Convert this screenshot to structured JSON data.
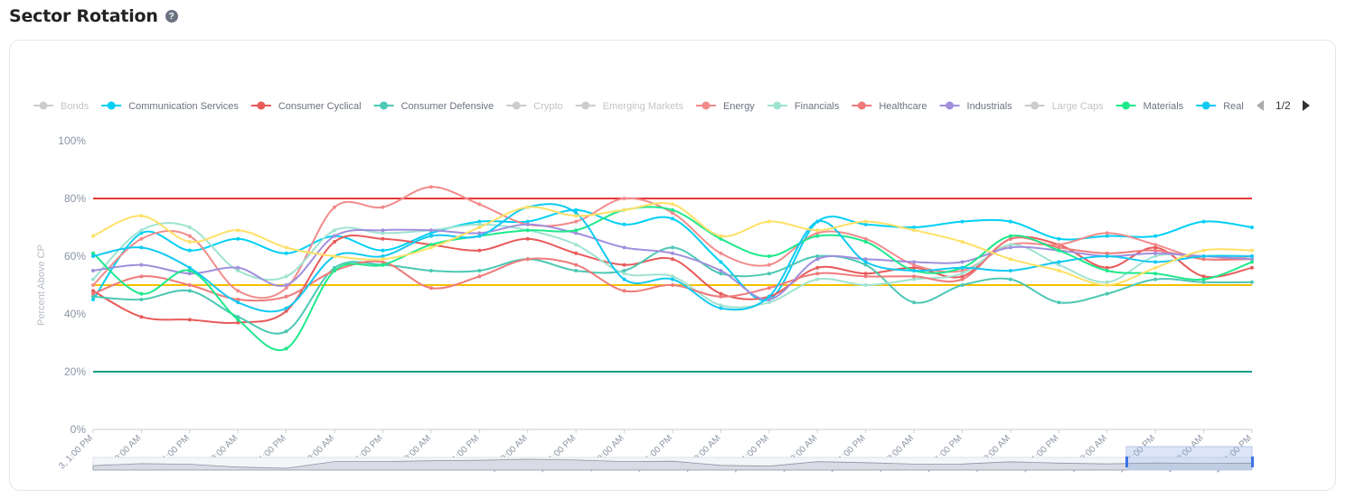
{
  "header": {
    "title": "Sector Rotation",
    "help_icon": "question-circle-icon"
  },
  "legend": {
    "page": "1/2",
    "items": [
      {
        "name": "Bonds",
        "color": "#cccccc",
        "active": false
      },
      {
        "name": "Communication Services",
        "color": "#00d0f5",
        "active": true
      },
      {
        "name": "Consumer Cyclical",
        "color": "#e85a5a",
        "active": true
      },
      {
        "name": "Consumer Defensive",
        "color": "#4cc8b4",
        "active": true
      },
      {
        "name": "Crypto",
        "color": "#cccccc",
        "active": false
      },
      {
        "name": "Emerging Markets",
        "color": "#cccccc",
        "active": false
      },
      {
        "name": "Energy",
        "color": "#f28b8b",
        "active": true
      },
      {
        "name": "Financials",
        "color": "#9fe3d1",
        "active": true
      },
      {
        "name": "Healthcare",
        "color": "#ef7a7a",
        "active": true
      },
      {
        "name": "Industrials",
        "color": "#a18fdc",
        "active": true
      },
      {
        "name": "Large Caps",
        "color": "#cccccc",
        "active": false
      },
      {
        "name": "Materials",
        "color": "#1de98b",
        "active": true
      },
      {
        "name": "Real",
        "color": "#12c9f2",
        "active": true
      }
    ]
  },
  "chart_data": {
    "type": "line",
    "ylabel": "Percent Above CP",
    "ylim": [
      0,
      100
    ],
    "yticks": [
      "0%",
      "20%",
      "40%",
      "60%",
      "80%",
      "100%"
    ],
    "x": [
      "3, 1:00 PM",
      "4, 9:00 AM",
      "4, 1:00 PM",
      "5, 9:00 AM",
      "5, 1:00 PM",
      "6, 9:00 AM",
      "6, 1:00 PM",
      "9, 9:00 AM",
      "9, 1:00 PM",
      "10, 9:00 AM",
      "10, 1:00 PM",
      "11, 9:00 AM",
      "11, 1:00 PM",
      "12, 9:00 AM",
      "12, 1:00 PM",
      "13, 9:00 AM",
      "13, 1:00 PM",
      "17, 9:00 AM",
      "17, 1:00 PM",
      "18, 9:00 AM",
      "18, 1:00 PM",
      "19, 9:00 AM",
      "19, 1:00 PM",
      "20, 9:00 AM",
      "20, 1:00 PM"
    ],
    "reference_lines": [
      {
        "value": 80,
        "color": "#e53935"
      },
      {
        "value": 50,
        "color": "#f5c000"
      },
      {
        "value": 20,
        "color": "#1a9e86"
      }
    ],
    "series": [
      {
        "name": "Communication Services",
        "color": "#00d0f5",
        "values": [
          45,
          68,
          62,
          66,
          61,
          67,
          62,
          68,
          72,
          72,
          76,
          71,
          73,
          58,
          45,
          72,
          71,
          70,
          72,
          72,
          66,
          67,
          67,
          72,
          70
        ]
      },
      {
        "name": "Consumer Cyclical",
        "color": "#e85a5a",
        "values": [
          48,
          39,
          38,
          37,
          41,
          65,
          66,
          64,
          62,
          66,
          61,
          57,
          59,
          47,
          46,
          56,
          54,
          56,
          53,
          66,
          64,
          56,
          63,
          53,
          56
        ]
      },
      {
        "name": "Consumer Defensive",
        "color": "#4cc8b4",
        "values": [
          46,
          45,
          48,
          39,
          34,
          56,
          57,
          55,
          55,
          59,
          55,
          55,
          63,
          54,
          54,
          60,
          57,
          44,
          50,
          52,
          44,
          47,
          52,
          51,
          51
        ]
      },
      {
        "name": "Energy",
        "color": "#f28b8b",
        "values": [
          50,
          66,
          67,
          48,
          49,
          77,
          77,
          84,
          78,
          71,
          72,
          80,
          75,
          61,
          57,
          68,
          66,
          57,
          55,
          64,
          64,
          68,
          64,
          59,
          60
        ]
      },
      {
        "name": "Financials",
        "color": "#9fe3d1",
        "values": [
          52,
          69,
          70,
          55,
          53,
          69,
          68,
          69,
          71,
          69,
          64,
          54,
          53,
          43,
          44,
          52,
          50,
          52,
          54,
          64,
          57,
          51,
          60,
          60,
          60
        ]
      },
      {
        "name": "Healthcare",
        "color": "#ef7a7a",
        "values": [
          47,
          53,
          50,
          45,
          46,
          55,
          58,
          49,
          53,
          59,
          57,
          48,
          50,
          46,
          49,
          54,
          53,
          53,
          52,
          66,
          63,
          61,
          62,
          59,
          59
        ]
      },
      {
        "name": "Industrials",
        "color": "#a18fdc",
        "values": [
          55,
          57,
          54,
          56,
          50,
          67,
          69,
          69,
          68,
          71,
          68,
          63,
          61,
          55,
          45,
          59,
          59,
          58,
          58,
          63,
          62,
          60,
          61,
          60,
          59
        ]
      },
      {
        "name": "Materials",
        "color": "#1de98b",
        "values": [
          61,
          47,
          55,
          38,
          28,
          55,
          57,
          64,
          67,
          69,
          69,
          76,
          76,
          66,
          60,
          67,
          65,
          55,
          56,
          67,
          62,
          55,
          54,
          52,
          58
        ]
      },
      {
        "name": "Real",
        "color": "#12c9f2",
        "values": [
          60,
          63,
          56,
          44,
          42,
          60,
          60,
          67,
          67,
          77,
          75,
          52,
          52,
          42,
          46,
          72,
          58,
          55,
          56,
          55,
          58,
          60,
          58,
          60,
          60
        ]
      },
      {
        "name": "",
        "color": "#ffe066",
        "values": [
          67,
          74,
          65,
          69,
          63,
          60,
          59,
          63,
          70,
          77,
          74,
          76,
          78,
          67,
          72,
          69,
          72,
          69,
          65,
          59,
          55,
          50,
          56,
          62,
          62
        ]
      }
    ]
  }
}
